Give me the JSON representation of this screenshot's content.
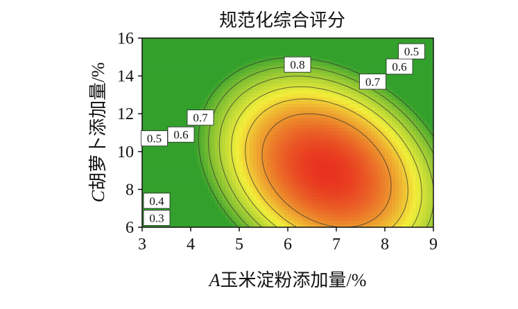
{
  "chart_data": {
    "type": "heatmap",
    "subtype": "contour",
    "title": "规范化综合评分",
    "xlabel": "A玉米淀粉添加量/%",
    "xlabel_italic_prefix": "A",
    "xlabel_rest": "玉米淀粉添加量/%",
    "ylabel": "C胡萝卜添加量/%",
    "ylabel_italic_prefix": "C",
    "ylabel_rest": "胡萝卜添加量/%",
    "xlim": [
      3,
      9
    ],
    "ylim": [
      6,
      16
    ],
    "x_ticks": [
      "3",
      "4",
      "5",
      "6",
      "7",
      "8",
      "9"
    ],
    "y_ticks": [
      "6",
      "8",
      "10",
      "12",
      "14",
      "16"
    ],
    "contour_levels": [
      0.3,
      0.4,
      0.5,
      0.6,
      0.7,
      0.8
    ],
    "contour_labels": [
      {
        "text": "0.8",
        "x": 6.2,
        "y": 14.6
      },
      {
        "text": "0.7",
        "x": 7.75,
        "y": 13.7
      },
      {
        "text": "0.6",
        "x": 8.3,
        "y": 14.5
      },
      {
        "text": "0.5",
        "x": 8.55,
        "y": 15.3
      },
      {
        "text": "0.7",
        "x": 4.2,
        "y": 11.8
      },
      {
        "text": "0.6",
        "x": 3.8,
        "y": 10.9
      },
      {
        "text": "0.5",
        "x": 3.25,
        "y": 10.7
      },
      {
        "text": "0.4",
        "x": 3.3,
        "y": 7.4
      },
      {
        "text": "0.3",
        "x": 3.3,
        "y": 6.5
      }
    ],
    "colormap": {
      "low": "#33a02c",
      "mid": "#f2ee3a",
      "high": "#e8321f"
    },
    "optimum": {
      "x": 6.8,
      "y": 9.0
    }
  }
}
